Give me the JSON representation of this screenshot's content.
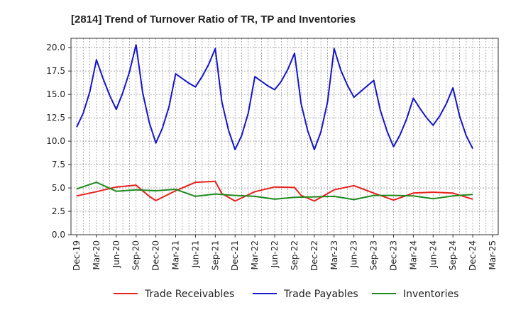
{
  "chart_data": {
    "type": "line",
    "title": "[2814]  Trend of Turnover Ratio of TR, TP and Inventories",
    "xlabel": "",
    "ylabel": "",
    "ylim": [
      0,
      21
    ],
    "y_ticks": [
      "0.0",
      "2.5",
      "5.0",
      "7.5",
      "10.0",
      "12.5",
      "15.0",
      "17.5",
      "20.0"
    ],
    "x_tick_labels": [
      "Dec-19",
      "Mar-20",
      "Jun-20",
      "Sep-20",
      "Dec-20",
      "Mar-21",
      "Jun-21",
      "Sep-21",
      "Dec-21",
      "Mar-22",
      "Jun-22",
      "Sep-22",
      "Dec-22",
      "Mar-23",
      "Jun-23",
      "Sep-23",
      "Dec-23",
      "Mar-24",
      "Jun-24",
      "Sep-24",
      "Dec-24",
      "Mar-25"
    ],
    "x": [
      "2019-12",
      "2020-01",
      "2020-02",
      "2020-03",
      "2020-04",
      "2020-05",
      "2020-06",
      "2020-07",
      "2020-08",
      "2020-09",
      "2020-10",
      "2020-11",
      "2020-12",
      "2021-01",
      "2021-02",
      "2021-03",
      "2021-04",
      "2021-05",
      "2021-06",
      "2021-07",
      "2021-08",
      "2021-09",
      "2021-10",
      "2021-11",
      "2021-12",
      "2022-01",
      "2022-02",
      "2022-03",
      "2022-04",
      "2022-05",
      "2022-06",
      "2022-07",
      "2022-08",
      "2022-09",
      "2022-10",
      "2022-11",
      "2022-12",
      "2023-01",
      "2023-02",
      "2023-03",
      "2023-04",
      "2023-05",
      "2023-06",
      "2023-07",
      "2023-08",
      "2023-09",
      "2023-10",
      "2023-11",
      "2023-12",
      "2024-01",
      "2024-02",
      "2024-03",
      "2024-04",
      "2024-05",
      "2024-06",
      "2024-07",
      "2024-08",
      "2024-09",
      "2024-10",
      "2024-11",
      "2024-12"
    ],
    "grid": "both, dotted",
    "legend_position": "bottom",
    "series": [
      {
        "name": "Trade Receivables",
        "color": "#e8211a",
        "values": [
          4.15,
          null,
          null,
          4.6,
          null,
          null,
          5.1,
          null,
          null,
          5.3,
          null,
          4.1,
          3.65,
          null,
          null,
          4.7,
          null,
          null,
          5.6,
          null,
          null,
          5.7,
          4.4,
          null,
          3.6,
          null,
          null,
          4.6,
          null,
          null,
          5.1,
          null,
          null,
          5.05,
          4.2,
          null,
          3.6,
          null,
          null,
          4.8,
          null,
          null,
          5.25,
          null,
          null,
          4.45,
          null,
          null,
          3.7,
          null,
          null,
          4.45,
          null,
          null,
          4.55,
          null,
          null,
          4.45,
          null,
          null,
          3.8
        ]
      },
      {
        "name": "Trade Payables",
        "color": "#1515cc",
        "values": [
          11.5,
          13.0,
          15.3,
          18.7,
          16.7,
          14.9,
          13.4,
          15.2,
          17.4,
          20.3,
          15.2,
          12.0,
          9.8,
          11.4,
          13.7,
          17.2,
          16.7,
          16.2,
          15.8,
          16.9,
          18.2,
          19.9,
          14.2,
          11.2,
          9.1,
          10.6,
          13.0,
          16.9,
          16.4,
          15.9,
          15.5,
          16.4,
          17.7,
          19.4,
          14.0,
          11.1,
          9.1,
          11.0,
          14.2,
          19.9,
          17.6,
          16.0,
          14.7,
          15.3,
          15.9,
          16.5,
          13.3,
          11.1,
          9.4,
          10.7,
          12.4,
          14.6,
          13.5,
          12.5,
          11.7,
          12.7,
          14.0,
          15.7,
          12.7,
          10.6,
          9.2
        ]
      },
      {
        "name": "Inventories",
        "color": "#1e8a1e",
        "values": [
          4.9,
          null,
          null,
          5.6,
          null,
          null,
          4.65,
          null,
          null,
          4.8,
          null,
          null,
          4.7,
          null,
          null,
          4.85,
          null,
          null,
          4.1,
          null,
          null,
          4.35,
          null,
          null,
          4.2,
          null,
          null,
          4.1,
          null,
          null,
          3.8,
          null,
          null,
          4.0,
          null,
          null,
          4.05,
          null,
          null,
          4.1,
          null,
          null,
          3.75,
          null,
          null,
          4.2,
          null,
          null,
          4.2,
          null,
          null,
          4.15,
          null,
          null,
          3.85,
          null,
          null,
          4.15,
          null,
          null,
          4.3
        ]
      }
    ]
  }
}
